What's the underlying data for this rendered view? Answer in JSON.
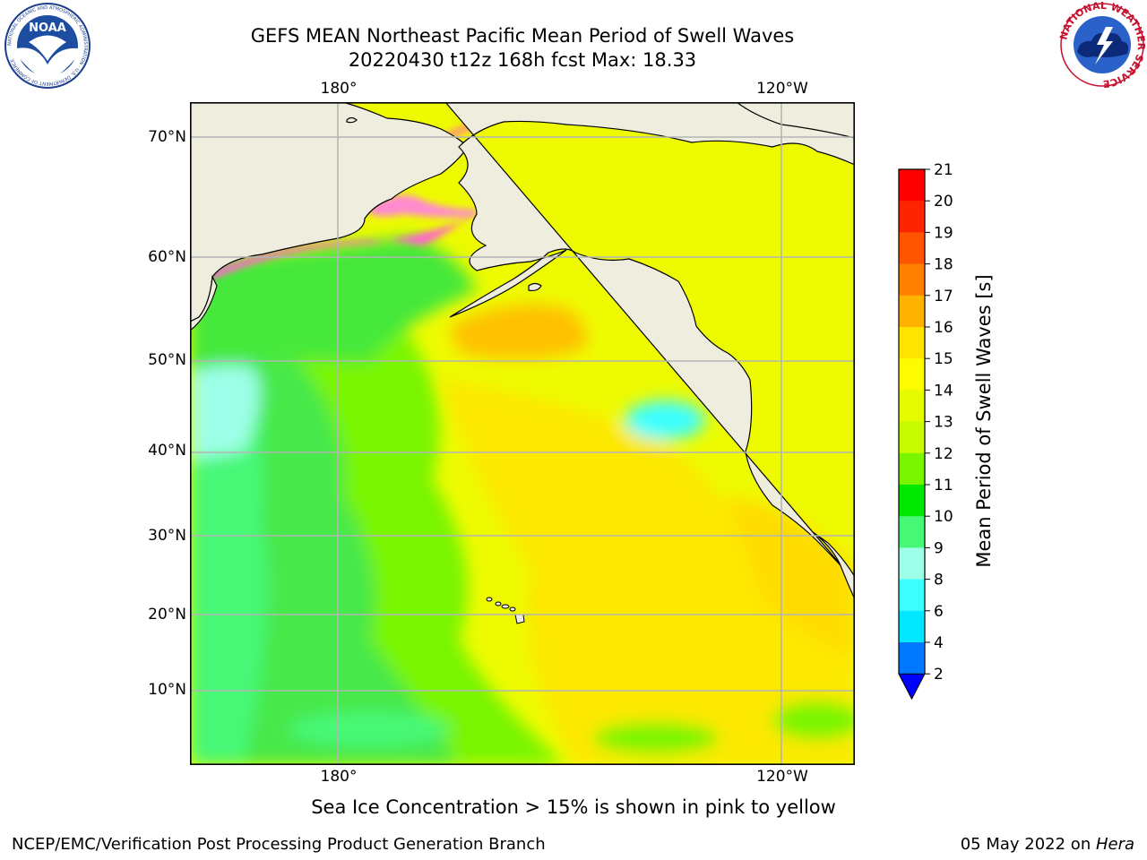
{
  "title": {
    "line1": "GEFS MEAN Northeast Pacific Mean Period of Swell Waves",
    "line2": "20220430 t12z 168h fcst   Max: 18.33"
  },
  "logos": {
    "noaa": {
      "text": "NOAA",
      "ring_text": "NATIONAL OCEANIC AND ATMOSPHERIC ADMINISTRATION · U.S. DEPARTMENT OF COMMERCE",
      "icon": "noaa-logo"
    },
    "nws": {
      "ring_text": "NATIONAL WEATHER SERVICE",
      "icon": "nws-logo"
    }
  },
  "map": {
    "lon_labels_top": [
      "180°",
      "120°W"
    ],
    "lon_labels_bottom": [
      "180°",
      "120°W"
    ],
    "lat_labels": [
      "70°N",
      "60°N",
      "50°N",
      "40°N",
      "30°N",
      "20°N",
      "10°N"
    ],
    "colors": {
      "land": "#eeedde",
      "coast": "#000000",
      "grid": "#b4b4b4"
    }
  },
  "colorbar": {
    "label": "Mean Period of Swell Waves [s]",
    "ticks": [
      "21",
      "20",
      "19",
      "18",
      "17",
      "16",
      "15",
      "14",
      "13",
      "12",
      "11",
      "10",
      "9",
      "8",
      "6",
      "4",
      "2"
    ],
    "colors": [
      "#ff0000",
      "#ff2400",
      "#ff5500",
      "#ff8000",
      "#ffb200",
      "#ffe400",
      "#fdfb00",
      "#e4fb00",
      "#c8fb00",
      "#79f500",
      "#00e700",
      "#46f876",
      "#9dffe7",
      "#3cffff",
      "#00e7ff",
      "#0078ff"
    ],
    "extend_color": "#0000ff"
  },
  "note": "Sea Ice Concentration > 15% is shown in pink to yellow",
  "footer": {
    "left": "NCEP/EMC/Verification Post Processing Product Generation Branch",
    "right_date": "05 May 2022 on ",
    "right_host": "Hera"
  }
}
